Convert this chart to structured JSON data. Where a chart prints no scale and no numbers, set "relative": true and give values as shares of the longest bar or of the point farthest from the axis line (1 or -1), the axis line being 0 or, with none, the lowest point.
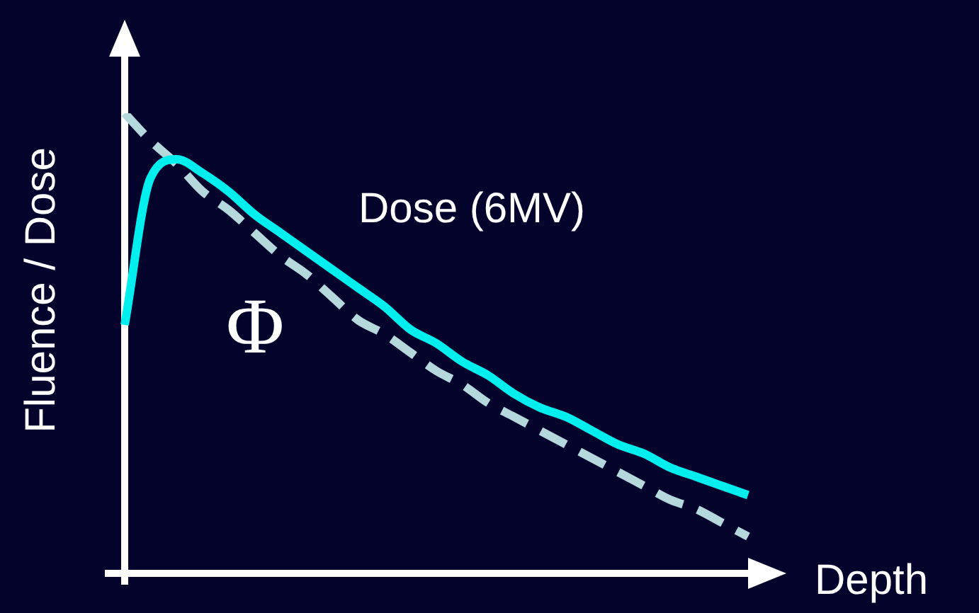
{
  "chart_data": {
    "type": "line",
    "relative": true,
    "xlabel": "Depth",
    "ylabel": "Fluence / Dose",
    "legend": false,
    "grid": false,
    "marker": "none",
    "categories": [
      null,
      null,
      null,
      null,
      null,
      null,
      null,
      null,
      null,
      null,
      null,
      null,
      null,
      null,
      null,
      null,
      null,
      null,
      null,
      null,
      null,
      null,
      null,
      null,
      null
    ],
    "series": [
      {
        "name": "Dose (6MV)",
        "color": "#00eeee",
        "line_style": "solid",
        "values": [
          0.54,
          0.86,
          0.9,
          0.87,
          0.83,
          0.78,
          0.74,
          0.7,
          0.66,
          0.62,
          0.58,
          0.53,
          0.5,
          0.46,
          0.43,
          0.39,
          0.36,
          0.34,
          0.31,
          0.28,
          0.26,
          0.23,
          0.21,
          0.19,
          0.17
        ]
      },
      {
        "name": "Φ",
        "color": "#b4d8dc",
        "line_style": "dashed",
        "values": [
          1.0,
          0.94,
          0.89,
          0.83,
          0.79,
          0.74,
          0.69,
          0.65,
          0.6,
          0.55,
          0.52,
          0.48,
          0.44,
          0.41,
          0.37,
          0.34,
          0.31,
          0.28,
          0.25,
          0.22,
          0.19,
          0.16,
          0.14,
          0.11,
          0.08
        ]
      }
    ]
  }
}
